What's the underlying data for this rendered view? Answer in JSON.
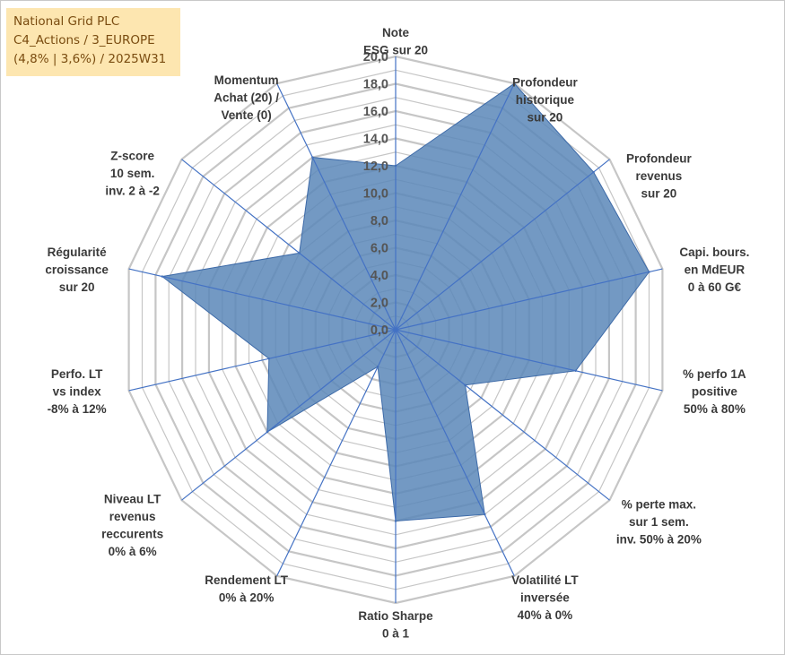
{
  "title_box": {
    "lines": [
      "National Grid PLC",
      "C4_Actions / 3_EUROPE",
      "(4,8% | 3,6%) / 2025W31"
    ]
  },
  "chart_data": {
    "type": "radar",
    "title": "National Grid PLC",
    "rmin": 0,
    "rmax": 20,
    "ticks": [
      "0,0",
      "2,0",
      "4,0",
      "6,0",
      "8,0",
      "10,0",
      "12,0",
      "14,0",
      "16,0",
      "18,0",
      "20,0"
    ],
    "grid": true,
    "colors": {
      "fill": "#5b87b8",
      "stroke": "#3d6aa8",
      "grid": "#c6c6c6",
      "spoke": "#4472c4"
    },
    "categories": [
      [
        "Note",
        "ESG sur 20"
      ],
      [
        "Profondeur",
        "historique",
        "sur 20"
      ],
      [
        "Profondeur",
        "revenus",
        "sur 20"
      ],
      [
        "Capi. bours.",
        "en MdEUR",
        "0 à 60 G€"
      ],
      [
        "% perfo 1A",
        "positive",
        "50% à 80%"
      ],
      [
        "% perte max.",
        "sur 1 sem.",
        "inv. 50% à 20%"
      ],
      [
        "Volatilité LT",
        "inversée",
        "40% à 0%"
      ],
      [
        "Ratio Sharpe",
        "0 à 1"
      ],
      [
        "Rendement LT",
        "0% à 20%"
      ],
      [
        "Niveau LT",
        "revenus",
        "reccurents",
        "0% à 6%"
      ],
      [
        "Perfo. LT",
        "vs index",
        "-8% à 12%"
      ],
      [
        "Régularité",
        "croissance",
        "sur 20"
      ],
      [
        "Z-score",
        "10 sem.",
        "inv. 2 à -2"
      ],
      [
        "Momentum",
        "Achat (20) /",
        "Vente (0)"
      ]
    ],
    "series": [
      {
        "values": [
          12.0,
          20.0,
          18.5,
          19.0,
          13.5,
          6.5,
          15.0,
          14.0,
          3.0,
          12.0,
          9.5,
          17.5,
          9.0,
          14.0
        ]
      }
    ]
  }
}
